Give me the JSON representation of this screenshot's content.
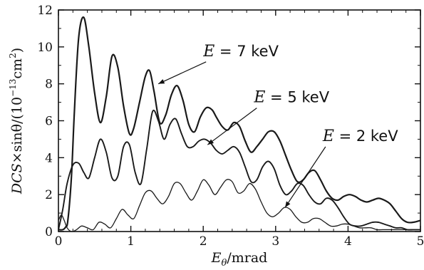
{
  "chart_data": {
    "type": "line",
    "title": "",
    "xlabel": {
      "main": "E",
      "sub": "θ",
      "rest": "/mrad"
    },
    "ylabel": {
      "pre": "DCS",
      "mid": "×sinθ/(10",
      "exp": "−13",
      "unit": "cm",
      "unit_exp": "2",
      "close": ")"
    },
    "xlim": [
      0,
      5
    ],
    "ylim": [
      0,
      12
    ],
    "x_ticks": [
      0,
      1,
      2,
      3,
      4,
      5
    ],
    "y_ticks": [
      0,
      2,
      4,
      6,
      8,
      10,
      12
    ],
    "grid": false,
    "series": [
      {
        "name": "E = 7 keV",
        "x": [
          0,
          0.06,
          0.1,
          0.13,
          0.18,
          0.22,
          0.28,
          0.35,
          0.42,
          0.5,
          0.58,
          0.66,
          0.74,
          0.82,
          0.9,
          0.98,
          1.04,
          1.12,
          1.2,
          1.26,
          1.32,
          1.4,
          1.48,
          1.56,
          1.64,
          1.72,
          1.8,
          1.88,
          1.96,
          2.04,
          2.12,
          2.18,
          2.26,
          2.34,
          2.42,
          2.5,
          2.58,
          2.66,
          2.74,
          2.82,
          2.9,
          2.98,
          3.06,
          3.14,
          3.22,
          3.3,
          3.38,
          3.46,
          3.54,
          3.62,
          3.7,
          3.78,
          3.86,
          3.94,
          4.02,
          4.1,
          4.18,
          4.26,
          4.34,
          4.42,
          4.5,
          4.58,
          4.66,
          4.74,
          4.82,
          4.9,
          5.0
        ],
        "y": [
          0.1,
          0.1,
          0.25,
          0.6,
          3.0,
          6.5,
          10.5,
          11.6,
          10.0,
          7.5,
          5.9,
          7.3,
          9.5,
          8.9,
          6.8,
          5.3,
          5.6,
          7.0,
          8.4,
          8.7,
          7.6,
          5.9,
          6.3,
          7.4,
          7.9,
          7.1,
          5.8,
          5.4,
          6.2,
          6.7,
          6.6,
          6.2,
          5.7,
          5.5,
          5.9,
          5.7,
          4.9,
          4.3,
          4.6,
          5.0,
          5.4,
          5.4,
          4.9,
          4.1,
          3.3,
          2.7,
          2.8,
          3.2,
          3.3,
          2.8,
          2.2,
          1.8,
          1.7,
          1.9,
          2.0,
          1.9,
          1.7,
          1.6,
          1.7,
          1.8,
          1.7,
          1.5,
          1.1,
          0.7,
          0.5,
          0.5,
          0.6
        ]
      },
      {
        "name": "E = 5 keV",
        "x": [
          0,
          0.06,
          0.12,
          0.2,
          0.28,
          0.35,
          0.42,
          0.5,
          0.58,
          0.66,
          0.74,
          0.82,
          0.9,
          0.98,
          1.06,
          1.14,
          1.22,
          1.3,
          1.38,
          1.46,
          1.54,
          1.62,
          1.7,
          1.78,
          1.86,
          1.94,
          2.02,
          2.1,
          2.18,
          2.26,
          2.34,
          2.42,
          2.5,
          2.58,
          2.66,
          2.74,
          2.82,
          2.9,
          2.98,
          3.06,
          3.14,
          3.22,
          3.3,
          3.38,
          3.46,
          3.54,
          3.62,
          3.7,
          3.78,
          3.86,
          3.94,
          4.02,
          4.1,
          4.18,
          4.26,
          4.34,
          4.42,
          4.5,
          4.58,
          4.66,
          4.74,
          4.82,
          4.9,
          5.0
        ],
        "y": [
          0.1,
          1.2,
          2.6,
          3.6,
          3.7,
          3.2,
          2.9,
          4.0,
          5.0,
          4.3,
          2.9,
          3.0,
          4.6,
          4.7,
          3.2,
          2.6,
          4.5,
          6.5,
          6.0,
          5.0,
          5.8,
          6.1,
          5.3,
          4.6,
          4.6,
          4.9,
          5.0,
          4.8,
          4.4,
          4.2,
          4.4,
          4.6,
          4.3,
          3.5,
          2.7,
          2.8,
          3.5,
          3.8,
          3.4,
          2.5,
          2.0,
          2.2,
          2.6,
          2.5,
          2.0,
          1.6,
          1.5,
          1.8,
          1.7,
          1.3,
          0.8,
          0.4,
          0.3,
          0.3,
          0.4,
          0.5,
          0.5,
          0.4,
          0.3,
          0.2,
          0.2,
          0.1,
          0.1,
          0.1
        ]
      },
      {
        "name": "E = 2 keV",
        "x": [
          0,
          0.04,
          0.08,
          0.12,
          0.18,
          0.25,
          0.32,
          0.4,
          0.48,
          0.56,
          0.64,
          0.72,
          0.8,
          0.88,
          0.96,
          1.04,
          1.12,
          1.2,
          1.28,
          1.36,
          1.44,
          1.52,
          1.6,
          1.68,
          1.76,
          1.84,
          1.92,
          2.0,
          2.08,
          2.16,
          2.24,
          2.32,
          2.4,
          2.48,
          2.56,
          2.64,
          2.72,
          2.8,
          2.88,
          2.96,
          3.04,
          3.12,
          3.2,
          3.28,
          3.36,
          3.44,
          3.52,
          3.6,
          3.68,
          3.76,
          3.84,
          3.92,
          4.0,
          4.08,
          4.16,
          4.24,
          4.32,
          4.4,
          4.48,
          4.56,
          4.64,
          4.72,
          4.8,
          4.88,
          4.96,
          5.0
        ],
        "y": [
          0.6,
          0.9,
          0.6,
          0.2,
          0.0,
          0.1,
          0.3,
          0.2,
          0.1,
          0.5,
          0.4,
          0.2,
          0.7,
          1.2,
          0.9,
          0.7,
          1.4,
          2.1,
          2.2,
          1.8,
          1.5,
          1.9,
          2.6,
          2.6,
          2.1,
          1.7,
          2.2,
          2.8,
          2.5,
          2.0,
          2.4,
          2.8,
          2.7,
          2.1,
          2.2,
          2.6,
          2.3,
          1.6,
          1.0,
          0.8,
          1.0,
          1.3,
          1.2,
          0.8,
          0.5,
          0.5,
          0.7,
          0.7,
          0.5,
          0.3,
          0.3,
          0.4,
          0.4,
          0.3,
          0.2,
          0.2,
          0.2,
          0.1,
          0.1,
          0.1,
          0.1,
          0.1,
          0.1,
          0.1,
          0.1,
          0.1
        ]
      }
    ],
    "annotations": [
      {
        "series": 0,
        "prefix": "E",
        "text": " = 7 keV",
        "label_at": [
          2.0,
          9.5
        ],
        "arrow_to": [
          1.38,
          8.0
        ]
      },
      {
        "series": 1,
        "prefix": "E",
        "text": " = 5 keV",
        "label_at": [
          2.7,
          7.0
        ],
        "arrow_to": [
          2.06,
          4.7
        ]
      },
      {
        "series": 2,
        "prefix": "E",
        "text": " = 2 keV",
        "label_at": [
          3.65,
          4.9
        ],
        "arrow_to": [
          3.13,
          1.3
        ]
      }
    ],
    "colors": {
      "line": "#1a1a1a",
      "axis": "#111111"
    }
  }
}
